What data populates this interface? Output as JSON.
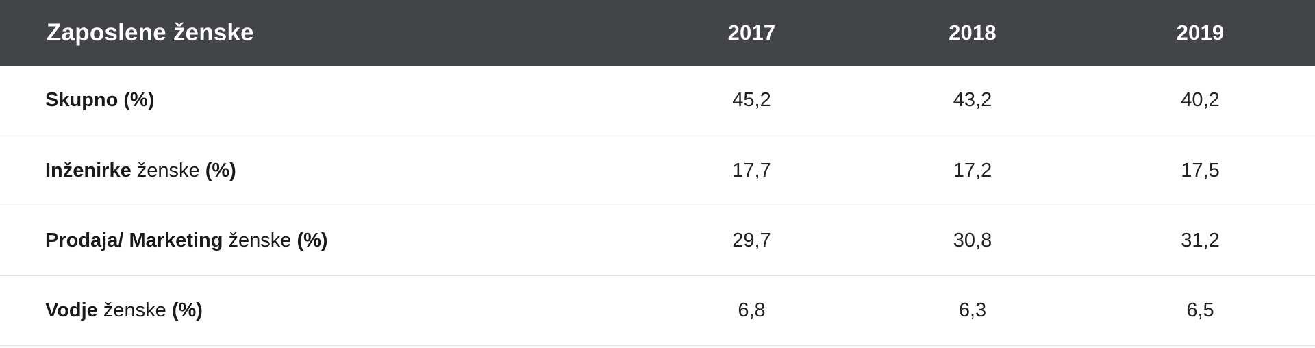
{
  "table": {
    "header": {
      "label": "Zaposlene ženske",
      "years": [
        "2017",
        "2018",
        "2019"
      ]
    },
    "rows": [
      {
        "label_bold_1": "Skupno",
        "label_normal": "",
        "label_bold_2": " (%)",
        "values": [
          "45,2",
          "43,2",
          "40,2"
        ]
      },
      {
        "label_bold_1": "Inženirke",
        "label_normal": " ženske",
        "label_bold_2": " (%)",
        "values": [
          "17,7",
          "17,2",
          "17,5"
        ]
      },
      {
        "label_bold_1": "Prodaja/ Marketing",
        "label_normal": " ženske",
        "label_bold_2": " (%)",
        "values": [
          "29,7",
          "30,8",
          "31,2"
        ]
      },
      {
        "label_bold_1": "Vodje",
        "label_normal": " ženske",
        "label_bold_2": " (%)",
        "values": [
          "6,8",
          "6,3",
          "6,5"
        ]
      }
    ]
  },
  "colors": {
    "header_bg": "#434447",
    "header_text": "#ffffff",
    "row_divider": "#e2e2e2"
  }
}
